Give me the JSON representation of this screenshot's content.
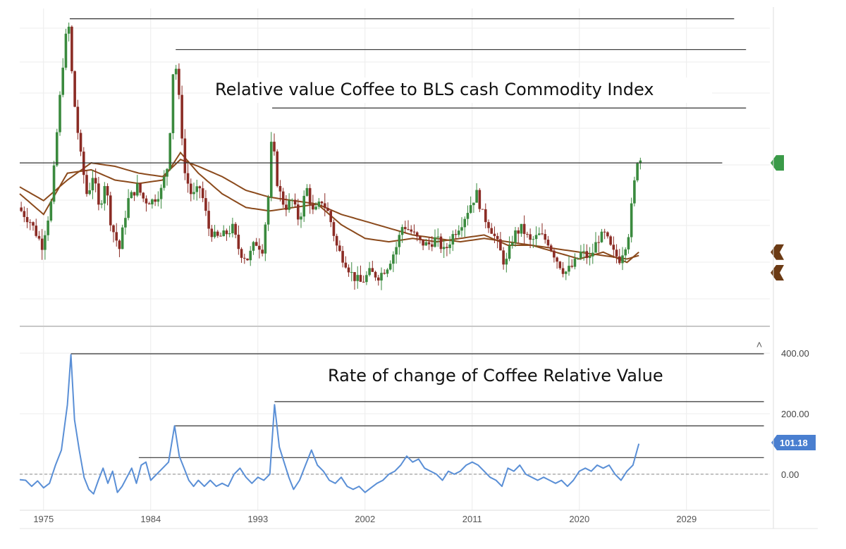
{
  "chart_data": [
    {
      "type": "candlestick",
      "title": "Relative value Coffee to BLS cash Commodity Index",
      "x_range": [
        1973,
        2036
      ],
      "y_scale": "relative (unlabeled)",
      "grid": true,
      "colors": {
        "up": "#3a8a3e",
        "down": "#8b2c25",
        "moving_average": "#8b4a1c",
        "reference_line": "#333333"
      },
      "anchors": [
        [
          1973.0,
          42
        ],
        [
          1974.0,
          38
        ],
        [
          1975.0,
          31
        ],
        [
          1975.8,
          44
        ],
        [
          1976.3,
          66
        ],
        [
          1976.8,
          86
        ],
        [
          1977.2,
          97
        ],
        [
          1977.6,
          76
        ],
        [
          1978.2,
          58
        ],
        [
          1978.8,
          45
        ],
        [
          1979.3,
          52
        ],
        [
          1979.8,
          41
        ],
        [
          1980.3,
          50
        ],
        [
          1980.8,
          37
        ],
        [
          1981.5,
          30
        ],
        [
          1982.2,
          44
        ],
        [
          1983.0,
          48
        ],
        [
          1983.6,
          44
        ],
        [
          1984.3,
          44
        ],
        [
          1985.0,
          47
        ],
        [
          1985.6,
          55
        ],
        [
          1986.1,
          88
        ],
        [
          1986.6,
          70
        ],
        [
          1987.0,
          52
        ],
        [
          1987.6,
          45
        ],
        [
          1988.3,
          48
        ],
        [
          1989.0,
          36
        ],
        [
          1989.6,
          33
        ],
        [
          1990.3,
          34
        ],
        [
          1991.0,
          36
        ],
        [
          1991.6,
          29
        ],
        [
          1992.3,
          27
        ],
        [
          1992.9,
          32
        ],
        [
          1993.5,
          30
        ],
        [
          1994.0,
          45
        ],
        [
          1994.3,
          63
        ],
        [
          1994.8,
          48
        ],
        [
          1995.4,
          42
        ],
        [
          1996.0,
          44
        ],
        [
          1996.6,
          38
        ],
        [
          1997.2,
          48
        ],
        [
          1997.8,
          40
        ],
        [
          1998.5,
          44
        ],
        [
          1999.1,
          40
        ],
        [
          1999.8,
          30
        ],
        [
          2000.5,
          26
        ],
        [
          2001.1,
          22
        ],
        [
          2001.8,
          20
        ],
        [
          2002.5,
          23
        ],
        [
          2003.3,
          22
        ],
        [
          2004.0,
          25
        ],
        [
          2004.7,
          30
        ],
        [
          2005.3,
          37
        ],
        [
          2006.0,
          35
        ],
        [
          2006.7,
          32
        ],
        [
          2007.4,
          31
        ],
        [
          2008.1,
          33
        ],
        [
          2008.8,
          29
        ],
        [
          2009.5,
          34
        ],
        [
          2010.3,
          38
        ],
        [
          2011.0,
          43
        ],
        [
          2011.5,
          46
        ],
        [
          2012.0,
          40
        ],
        [
          2012.7,
          36
        ],
        [
          2013.3,
          31
        ],
        [
          2013.9,
          25
        ],
        [
          2014.6,
          34
        ],
        [
          2015.3,
          36
        ],
        [
          2016.0,
          32
        ],
        [
          2016.8,
          34
        ],
        [
          2017.5,
          32
        ],
        [
          2018.2,
          27
        ],
        [
          2018.9,
          23
        ],
        [
          2019.6,
          25
        ],
        [
          2020.3,
          29
        ],
        [
          2021.0,
          27
        ],
        [
          2021.7,
          33
        ],
        [
          2022.3,
          34
        ],
        [
          2022.9,
          29
        ],
        [
          2023.5,
          27
        ],
        [
          2024.2,
          33
        ],
        [
          2024.6,
          45
        ],
        [
          2025.0,
          56
        ]
      ],
      "moving_average_anchors": [
        [
          [
            1973.0,
            48
          ],
          [
            1975.0,
            44
          ],
          [
            1977.0,
            50
          ],
          [
            1979.0,
            55
          ],
          [
            1981.0,
            54
          ],
          [
            1983.0,
            52
          ],
          [
            1985.0,
            51
          ],
          [
            1986.5,
            56
          ],
          [
            1988.0,
            54
          ],
          [
            1990.0,
            51
          ],
          [
            1992.0,
            47
          ],
          [
            1994.0,
            45
          ],
          [
            1996.0,
            44
          ],
          [
            1998.0,
            43
          ],
          [
            2000.0,
            40
          ],
          [
            2002.0,
            38
          ],
          [
            2004.0,
            36
          ],
          [
            2006.0,
            34
          ],
          [
            2008.0,
            33
          ],
          [
            2010.0,
            32
          ],
          [
            2012.0,
            33
          ],
          [
            2014.0,
            32
          ],
          [
            2016.0,
            31
          ],
          [
            2018.0,
            30
          ],
          [
            2020.0,
            29
          ],
          [
            2022.0,
            28
          ],
          [
            2024.0,
            27
          ],
          [
            2025.0,
            28
          ]
        ],
        [
          [
            1973.0,
            46
          ],
          [
            1975.0,
            40
          ],
          [
            1977.0,
            52
          ],
          [
            1979.0,
            53
          ],
          [
            1981.0,
            50
          ],
          [
            1983.0,
            49
          ],
          [
            1985.0,
            50
          ],
          [
            1986.5,
            58
          ],
          [
            1988.0,
            52
          ],
          [
            1990.0,
            46
          ],
          [
            1992.0,
            42
          ],
          [
            1994.0,
            41
          ],
          [
            1996.0,
            42
          ],
          [
            1998.0,
            43
          ],
          [
            2000.0,
            37
          ],
          [
            2002.0,
            33
          ],
          [
            2004.0,
            32
          ],
          [
            2006.0,
            33
          ],
          [
            2008.0,
            32
          ],
          [
            2010.0,
            33
          ],
          [
            2012.0,
            34
          ],
          [
            2014.0,
            31
          ],
          [
            2016.0,
            31
          ],
          [
            2018.0,
            29
          ],
          [
            2020.0,
            27
          ],
          [
            2022.0,
            29
          ],
          [
            2024.0,
            26
          ],
          [
            2025.0,
            29
          ]
        ]
      ],
      "reference_lines": [
        {
          "y": 97,
          "from": 1977.2,
          "to": 2033.0
        },
        {
          "y": 88,
          "from": 1986.1,
          "to": 2034.0
        },
        {
          "y": 71,
          "from": 1994.2,
          "to": 2034.0
        },
        {
          "y": 55,
          "from": 1973.0,
          "to": 2032.0
        }
      ],
      "right_markers": [
        {
          "y": 55,
          "color": "#3a9a48",
          "shape": "left-pointing"
        },
        {
          "y": 29,
          "color": "#6b3a14",
          "shape": "double"
        },
        {
          "y": 23,
          "color": "#6b3a14",
          "shape": "double"
        }
      ]
    },
    {
      "type": "line",
      "title": "Rate of change of Coffee Relative Value",
      "x_range": [
        1973,
        2036
      ],
      "x_ticks": [
        "1975",
        "1984",
        "1993",
        "2002",
        "2011",
        "2020",
        "2029"
      ],
      "x_tick_values": [
        1975,
        1984,
        1993,
        2002,
        2011,
        2020,
        2029
      ],
      "y_ticks": [
        "400.00",
        "200.00",
        "0.00"
      ],
      "y_tick_values": [
        400,
        200,
        0
      ],
      "y_range": [
        -105,
        440
      ],
      "last_value_label": "101.18",
      "colors": {
        "line": "#5a8fd6",
        "badge": "#4a7fd0",
        "zero_line": "#888888",
        "reference_line": "#333333"
      },
      "series": [
        {
          "values": [
            [
              1973.0,
              -18
            ],
            [
              1973.5,
              -20
            ],
            [
              1974.0,
              -40
            ],
            [
              1974.5,
              -22
            ],
            [
              1975.0,
              -45
            ],
            [
              1975.5,
              -30
            ],
            [
              1976.0,
              30
            ],
            [
              1976.5,
              80
            ],
            [
              1977.0,
              230
            ],
            [
              1977.3,
              395
            ],
            [
              1977.6,
              180
            ],
            [
              1978.0,
              80
            ],
            [
              1978.4,
              -10
            ],
            [
              1978.8,
              -50
            ],
            [
              1979.2,
              -65
            ],
            [
              1979.6,
              -20
            ],
            [
              1980.0,
              20
            ],
            [
              1980.4,
              -30
            ],
            [
              1980.8,
              10
            ],
            [
              1981.2,
              -60
            ],
            [
              1981.6,
              -40
            ],
            [
              1982.0,
              -10
            ],
            [
              1982.4,
              20
            ],
            [
              1982.8,
              -30
            ],
            [
              1983.2,
              30
            ],
            [
              1983.6,
              40
            ],
            [
              1984.0,
              -20
            ],
            [
              1984.5,
              0
            ],
            [
              1985.0,
              20
            ],
            [
              1985.5,
              40
            ],
            [
              1986.0,
              160
            ],
            [
              1986.4,
              60
            ],
            [
              1986.8,
              20
            ],
            [
              1987.2,
              -20
            ],
            [
              1987.6,
              -40
            ],
            [
              1988.0,
              -20
            ],
            [
              1988.5,
              -40
            ],
            [
              1989.0,
              -20
            ],
            [
              1989.5,
              -40
            ],
            [
              1990.0,
              -30
            ],
            [
              1990.5,
              -40
            ],
            [
              1991.0,
              0
            ],
            [
              1991.5,
              20
            ],
            [
              1992.0,
              -10
            ],
            [
              1992.5,
              -30
            ],
            [
              1993.0,
              -10
            ],
            [
              1993.5,
              -20
            ],
            [
              1994.0,
              0
            ],
            [
              1994.4,
              230
            ],
            [
              1994.8,
              90
            ],
            [
              1995.2,
              40
            ],
            [
              1995.6,
              -10
            ],
            [
              1996.0,
              -50
            ],
            [
              1996.5,
              -20
            ],
            [
              1997.0,
              30
            ],
            [
              1997.5,
              80
            ],
            [
              1998.0,
              30
            ],
            [
              1998.5,
              10
            ],
            [
              1999.0,
              -20
            ],
            [
              1999.5,
              -30
            ],
            [
              2000.0,
              -10
            ],
            [
              2000.5,
              -40
            ],
            [
              2001.0,
              -50
            ],
            [
              2001.5,
              -40
            ],
            [
              2002.0,
              -60
            ],
            [
              2002.5,
              -45
            ],
            [
              2003.0,
              -30
            ],
            [
              2003.5,
              -20
            ],
            [
              2004.0,
              0
            ],
            [
              2004.5,
              10
            ],
            [
              2005.0,
              30
            ],
            [
              2005.5,
              60
            ],
            [
              2006.0,
              40
            ],
            [
              2006.5,
              50
            ],
            [
              2007.0,
              20
            ],
            [
              2007.5,
              10
            ],
            [
              2008.0,
              0
            ],
            [
              2008.5,
              -20
            ],
            [
              2009.0,
              10
            ],
            [
              2009.5,
              0
            ],
            [
              2010.0,
              10
            ],
            [
              2010.5,
              30
            ],
            [
              2011.0,
              40
            ],
            [
              2011.5,
              30
            ],
            [
              2012.0,
              10
            ],
            [
              2012.5,
              -10
            ],
            [
              2013.0,
              -20
            ],
            [
              2013.5,
              -40
            ],
            [
              2014.0,
              20
            ],
            [
              2014.5,
              10
            ],
            [
              2015.0,
              30
            ],
            [
              2015.5,
              0
            ],
            [
              2016.0,
              -10
            ],
            [
              2016.5,
              -20
            ],
            [
              2017.0,
              -10
            ],
            [
              2017.5,
              -20
            ],
            [
              2018.0,
              -30
            ],
            [
              2018.5,
              -20
            ],
            [
              2019.0,
              -40
            ],
            [
              2019.5,
              -20
            ],
            [
              2020.0,
              10
            ],
            [
              2020.5,
              20
            ],
            [
              2021.0,
              10
            ],
            [
              2021.5,
              30
            ],
            [
              2022.0,
              20
            ],
            [
              2022.5,
              30
            ],
            [
              2023.0,
              0
            ],
            [
              2023.5,
              -20
            ],
            [
              2024.0,
              10
            ],
            [
              2024.5,
              30
            ],
            [
              2025.0,
              101
            ]
          ]
        }
      ],
      "reference_lines": [
        {
          "y": 398,
          "from": 1977.3,
          "to": 2035.5
        },
        {
          "y": 240,
          "from": 1994.4,
          "to": 2035.5
        },
        {
          "y": 160,
          "from": 1986.0,
          "to": 2035.5
        },
        {
          "y": 55,
          "from": 1983.0,
          "to": 2035.5
        }
      ],
      "collapse_glyph": "˄"
    }
  ]
}
